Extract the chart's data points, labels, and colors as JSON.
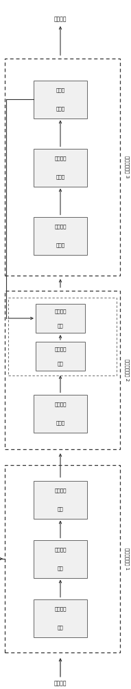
{
  "input_label": "输入信号",
  "output_label": "输出信号",
  "unit1_label": "数据处理单元 1",
  "unit2_label": "关联处理单元 2",
  "unit3_label": "显示处理单元 3",
  "unit1_boxes": [
    [
      "时域包络",
      "检波"
    ],
    [
      "脉冲参数",
      "计算"
    ],
    [
      "扩展数据",
      "处理"
    ]
  ],
  "unit2_boxes": [
    [
      "构建关联",
      "索引表"
    ],
    [
      "数据关联",
      "处理"
    ],
    [
      "显示关联",
      "处理"
    ]
  ],
  "unit3_boxes": [
    [
      "脉冲时间",
      "概览图"
    ],
    [
      "脉冲时域",
      "参数表"
    ],
    [
      "扩展视",
      "图显示"
    ]
  ],
  "bg_color": "#ffffff",
  "box_fc": "#f0f0f0",
  "box_ec": "#666666",
  "unit_ec": "#333333",
  "arrow_color": "#333333"
}
